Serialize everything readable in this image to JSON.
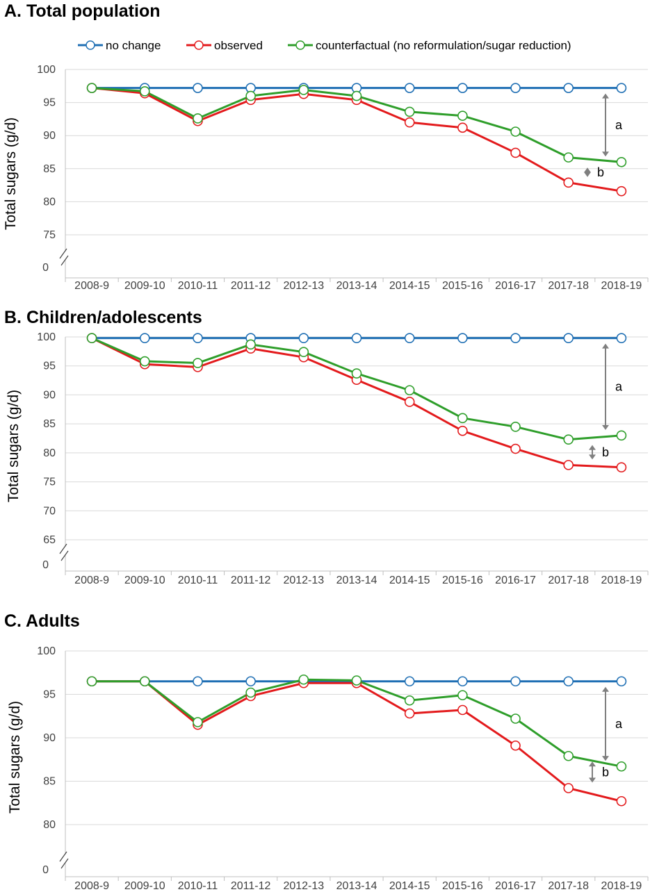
{
  "legend": {
    "items": [
      {
        "name": "no change",
        "color": "#1f6fb4"
      },
      {
        "name": "observed",
        "color": "#e31a1c"
      },
      {
        "name": "counterfactual (no reformulation/sugar reduction)",
        "color": "#2e9e2a"
      }
    ]
  },
  "chart_data": [
    {
      "type": "line",
      "title": "A. Total population",
      "ylabel": "Total sugars (g/d)",
      "xlabel": "",
      "categories": [
        "2008-9",
        "2009-10",
        "2010-11",
        "2011-12",
        "2012-13",
        "2013-14",
        "2014-15",
        "2015-16",
        "2016-17",
        "2017-18",
        "2018-19"
      ],
      "yticks": [
        75,
        80,
        85,
        90,
        95,
        100
      ],
      "ylim": [
        72,
        100
      ],
      "axis_break_label": "0",
      "series": [
        {
          "name": "no change",
          "color": "#1f6fb4",
          "values": [
            97.2,
            97.2,
            97.2,
            97.2,
            97.2,
            97.2,
            97.2,
            97.2,
            97.2,
            97.2,
            97.2
          ]
        },
        {
          "name": "observed",
          "color": "#e31a1c",
          "values": [
            97.2,
            96.4,
            92.2,
            95.4,
            96.3,
            95.4,
            92.0,
            91.2,
            87.4,
            82.9,
            81.6
          ]
        },
        {
          "name": "counterfactual (no reformulation/sugar reduction)",
          "color": "#2e9e2a",
          "values": [
            97.2,
            96.7,
            92.6,
            96.0,
            96.9,
            96.0,
            93.6,
            93.0,
            90.6,
            86.7,
            86.0
          ]
        }
      ],
      "annotations": [
        {
          "label": "a",
          "from": 97.2,
          "to": 86.0
        },
        {
          "label": "b",
          "from": 86.0,
          "to": 82.9
        }
      ]
    },
    {
      "type": "line",
      "title": "B. Children/adolescents",
      "ylabel": "Total sugars (g/d)",
      "xlabel": "",
      "categories": [
        "2008-9",
        "2009-10",
        "2010-11",
        "2011-12",
        "2012-13",
        "2013-14",
        "2014-15",
        "2015-16",
        "2016-17",
        "2017-18",
        "2018-19"
      ],
      "yticks": [
        65,
        70,
        75,
        80,
        85,
        90,
        95,
        100
      ],
      "ylim": [
        62,
        102
      ],
      "axis_break_label": "0",
      "series": [
        {
          "name": "no change",
          "color": "#1f6fb4",
          "values": [
            99.8,
            99.8,
            99.8,
            99.8,
            99.8,
            99.8,
            99.8,
            99.8,
            99.8,
            99.8,
            99.8
          ]
        },
        {
          "name": "observed",
          "color": "#e31a1c",
          "values": [
            99.8,
            95.3,
            94.8,
            98.0,
            96.5,
            92.6,
            88.8,
            83.8,
            80.7,
            77.9,
            77.5
          ]
        },
        {
          "name": "counterfactual (no reformulation/sugar reduction)",
          "color": "#2e9e2a",
          "values": [
            99.8,
            95.8,
            95.5,
            98.7,
            97.4,
            93.7,
            90.8,
            86.0,
            84.5,
            82.3,
            83.0
          ]
        }
      ],
      "annotations": [
        {
          "label": "a",
          "from": 99.8,
          "to": 83.0
        },
        {
          "label": "b",
          "from": 82.3,
          "to": 77.9
        }
      ]
    },
    {
      "type": "line",
      "title": "C. Adults",
      "ylabel": "Total sugars (g/d)",
      "xlabel": "",
      "categories": [
        "2008-9",
        "2009-10",
        "2010-11",
        "2011-12",
        "2012-13",
        "2013-14",
        "2014-15",
        "2015-16",
        "2016-17",
        "2017-18",
        "2018-19"
      ],
      "yticks": [
        80,
        85,
        90,
        95,
        100
      ],
      "ylim": [
        76,
        100
      ],
      "axis_break_label": "0",
      "series": [
        {
          "name": "no change",
          "color": "#1f6fb4",
          "values": [
            96.5,
            96.5,
            96.5,
            96.5,
            96.5,
            96.5,
            96.5,
            96.5,
            96.5,
            96.5,
            96.5
          ]
        },
        {
          "name": "observed",
          "color": "#e31a1c",
          "values": [
            96.5,
            96.5,
            91.5,
            94.8,
            96.3,
            96.3,
            92.8,
            93.2,
            89.1,
            84.2,
            82.7
          ]
        },
        {
          "name": "counterfactual (no reformulation/sugar reduction)",
          "color": "#2e9e2a",
          "values": [
            96.5,
            96.5,
            91.8,
            95.2,
            96.7,
            96.6,
            94.3,
            94.9,
            92.2,
            87.9,
            86.7
          ]
        }
      ],
      "annotations": [
        {
          "label": "a",
          "from": 96.5,
          "to": 86.7
        },
        {
          "label": "b",
          "from": 87.9,
          "to": 84.2
        }
      ]
    }
  ]
}
